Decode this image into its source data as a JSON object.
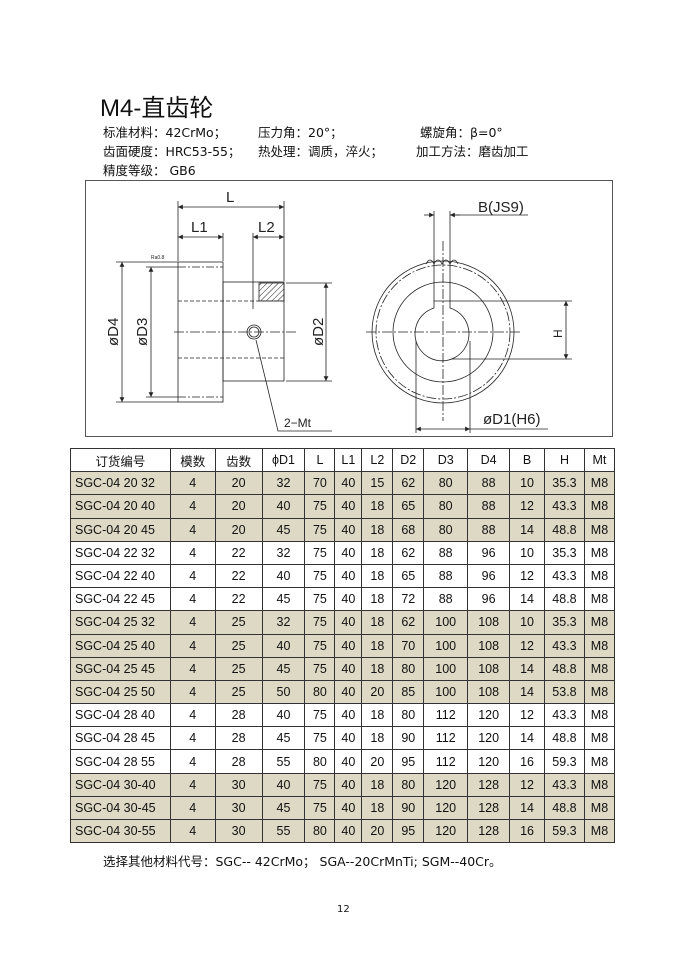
{
  "title": "M4-直齿轮",
  "specs": {
    "material": "标准材料：42CrMo；",
    "pressure_angle": "压力角：20°；",
    "helix_angle": "螺旋角：β=0°",
    "hardness": "齿面硬度：HRC53-55；",
    "heat_treatment": "热处理：调质，淬火；",
    "process": "加工方法：磨齿加工",
    "precision": "精度等级：  GB6"
  },
  "drawing": {
    "labels": {
      "L": "L",
      "L1": "L1",
      "L2": "L2",
      "D4": "øD4",
      "D3": "øD3",
      "D2": "øD2",
      "Mt": "2−Mt",
      "B": "B(JS9)",
      "H": "H",
      "D1": "øD1(H6)",
      "Ra": "Ra0.8"
    }
  },
  "table": {
    "headers": [
      "订货编号",
      "模数",
      "齿数",
      "ϕD1",
      "L",
      "L1",
      "L2",
      "D2",
      "D3",
      "D4",
      "B",
      "H",
      "Mt"
    ],
    "shade_color": "#ddd9c4",
    "rows": [
      {
        "shaded": true,
        "cells": [
          "SGC-04 20 32",
          "4",
          "20",
          "32",
          "70",
          "40",
          "15",
          "62",
          "80",
          "88",
          "10",
          "35.3",
          "M8"
        ]
      },
      {
        "shaded": true,
        "cells": [
          "SGC-04 20 40",
          "4",
          "20",
          "40",
          "75",
          "40",
          "18",
          "65",
          "80",
          "88",
          "12",
          "43.3",
          "M8"
        ]
      },
      {
        "shaded": true,
        "cells": [
          "SGC-04 20 45",
          "4",
          "20",
          "45",
          "75",
          "40",
          "18",
          "68",
          "80",
          "88",
          "14",
          "48.8",
          "M8"
        ]
      },
      {
        "shaded": false,
        "cells": [
          "SGC-04 22 32",
          "4",
          "22",
          "32",
          "75",
          "40",
          "18",
          "62",
          "88",
          "96",
          "10",
          "35.3",
          "M8"
        ]
      },
      {
        "shaded": false,
        "cells": [
          "SGC-04 22 40",
          "4",
          "22",
          "40",
          "75",
          "40",
          "18",
          "65",
          "88",
          "96",
          "12",
          "43.3",
          "M8"
        ]
      },
      {
        "shaded": false,
        "cells": [
          "SGC-04 22 45",
          "4",
          "22",
          "45",
          "75",
          "40",
          "18",
          "72",
          "88",
          "96",
          "14",
          "48.8",
          "M8"
        ]
      },
      {
        "shaded": true,
        "cells": [
          "SGC-04 25 32",
          "4",
          "25",
          "32",
          "75",
          "40",
          "18",
          "62",
          "100",
          "108",
          "10",
          "35.3",
          "M8"
        ]
      },
      {
        "shaded": true,
        "cells": [
          "SGC-04 25 40",
          "4",
          "25",
          "40",
          "75",
          "40",
          "18",
          "70",
          "100",
          "108",
          "12",
          "43.3",
          "M8"
        ]
      },
      {
        "shaded": true,
        "cells": [
          "SGC-04 25 45",
          "4",
          "25",
          "45",
          "75",
          "40",
          "18",
          "80",
          "100",
          "108",
          "14",
          "48.8",
          "M8"
        ]
      },
      {
        "shaded": true,
        "cells": [
          "SGC-04 25 50",
          "4",
          "25",
          "50",
          "80",
          "40",
          "20",
          "85",
          "100",
          "108",
          "14",
          "53.8",
          "M8"
        ]
      },
      {
        "shaded": false,
        "cells": [
          "SGC-04 28 40",
          "4",
          "28",
          "40",
          "75",
          "40",
          "18",
          "80",
          "112",
          "120",
          "12",
          "43.3",
          "M8"
        ]
      },
      {
        "shaded": false,
        "cells": [
          "SGC-04 28 45",
          "4",
          "28",
          "45",
          "75",
          "40",
          "18",
          "90",
          "112",
          "120",
          "14",
          "48.8",
          "M8"
        ]
      },
      {
        "shaded": false,
        "cells": [
          "SGC-04 28 55",
          "4",
          "28",
          "55",
          "80",
          "40",
          "20",
          "95",
          "112",
          "120",
          "16",
          "59.3",
          "M8"
        ]
      },
      {
        "shaded": true,
        "cells": [
          "SGC-04 30-40",
          "4",
          "30",
          "40",
          "75",
          "40",
          "18",
          "80",
          "120",
          "128",
          "12",
          "43.3",
          "M8"
        ]
      },
      {
        "shaded": true,
        "cells": [
          "SGC-04 30-45",
          "4",
          "30",
          "45",
          "75",
          "40",
          "18",
          "90",
          "120",
          "128",
          "14",
          "48.8",
          "M8"
        ]
      },
      {
        "shaded": true,
        "cells": [
          "SGC-04 30-55",
          "4",
          "30",
          "55",
          "80",
          "40",
          "20",
          "95",
          "120",
          "128",
          "16",
          "59.3",
          "M8"
        ]
      }
    ]
  },
  "footnote": "选择其他材料代号：SGC-- 42CrMo；   SGA--20CrMnTi;     SGM--40Cr。",
  "page_number": "12"
}
